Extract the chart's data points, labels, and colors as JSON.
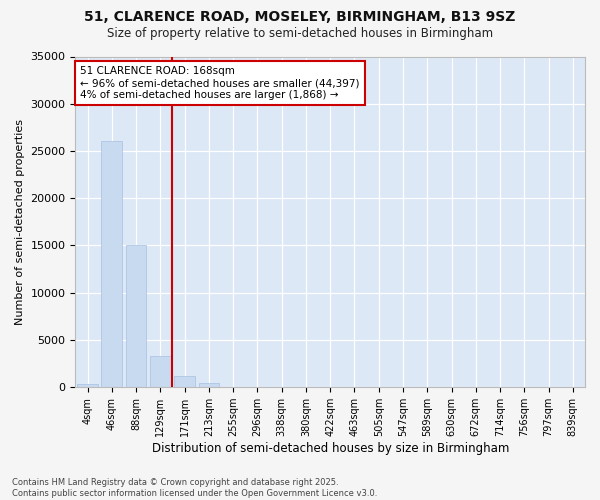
{
  "title_line1": "51, CLARENCE ROAD, MOSELEY, BIRMINGHAM, B13 9SZ",
  "title_line2": "Size of property relative to semi-detached houses in Birmingham",
  "xlabel": "Distribution of semi-detached houses by size in Birmingham",
  "ylabel": "Number of semi-detached properties",
  "categories": [
    "4sqm",
    "46sqm",
    "88sqm",
    "129sqm",
    "171sqm",
    "213sqm",
    "255sqm",
    "296sqm",
    "338sqm",
    "380sqm",
    "422sqm",
    "463sqm",
    "505sqm",
    "547sqm",
    "589sqm",
    "630sqm",
    "672sqm",
    "714sqm",
    "756sqm",
    "797sqm",
    "839sqm"
  ],
  "bar_values": [
    350,
    26100,
    15100,
    3300,
    1200,
    400,
    50,
    0,
    0,
    0,
    0,
    0,
    0,
    0,
    0,
    0,
    0,
    0,
    0,
    0,
    0
  ],
  "bar_color": "#c8daf0",
  "bar_edgecolor": "#a8c0e0",
  "vline_index": 4,
  "vline_color": "#cc0000",
  "annotation_title": "51 CLARENCE ROAD: 168sqm",
  "annotation_line2": "← 96% of semi-detached houses are smaller (44,397)",
  "annotation_line3": "4% of semi-detached houses are larger (1,868) →",
  "annotation_box_color": "#cc0000",
  "ylim": [
    0,
    35000
  ],
  "yticks": [
    0,
    5000,
    10000,
    15000,
    20000,
    25000,
    30000,
    35000
  ],
  "footnote_line1": "Contains HM Land Registry data © Crown copyright and database right 2025.",
  "footnote_line2": "Contains public sector information licensed under the Open Government Licence v3.0.",
  "bg_color": "#f5f5f5",
  "plot_bg_color": "#dce8f5"
}
